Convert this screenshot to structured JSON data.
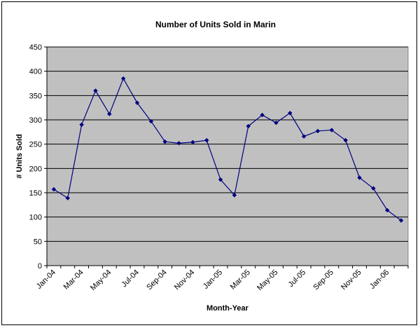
{
  "chart_data": {
    "type": "line",
    "title": "Number of Units Sold in Marin",
    "xlabel": "Month-Year",
    "ylabel": "# Units Sold",
    "ylim": [
      0,
      450
    ],
    "yticks": [
      0,
      50,
      100,
      150,
      200,
      250,
      300,
      350,
      400,
      450
    ],
    "grid": true,
    "legend": "none",
    "x": [
      "Jan-04",
      "Feb-04",
      "Mar-04",
      "Apr-04",
      "May-04",
      "Jun-04",
      "Jul-04",
      "Aug-04",
      "Sep-04",
      "Oct-04",
      "Nov-04",
      "Dec-04",
      "Jan-05",
      "Feb-05",
      "Mar-05",
      "Apr-05",
      "May-05",
      "Jun-05",
      "Jul-05",
      "Aug-05",
      "Sep-05",
      "Oct-05",
      "Nov-05",
      "Dec-05",
      "Jan-06",
      "Feb-06"
    ],
    "tick_labels": [
      "Jan-04",
      "Mar-04",
      "May-04",
      "Jul-04",
      "Sep-04",
      "Nov-04",
      "Jan-05",
      "Mar-05",
      "May-05",
      "Jul-05",
      "Sep-05",
      "Nov-05",
      "Jan-06"
    ],
    "series": [
      {
        "values": [
          157,
          139,
          290,
          360,
          312,
          385,
          335,
          297,
          255,
          252,
          254,
          258,
          177,
          145,
          287,
          310,
          294,
          314,
          266,
          277,
          279,
          258,
          181,
          159,
          114,
          93
        ],
        "color": "#000080"
      }
    ],
    "colors": {
      "plot_bg": "#c0c0c0",
      "grid": "#000000",
      "line": "#000080"
    }
  }
}
